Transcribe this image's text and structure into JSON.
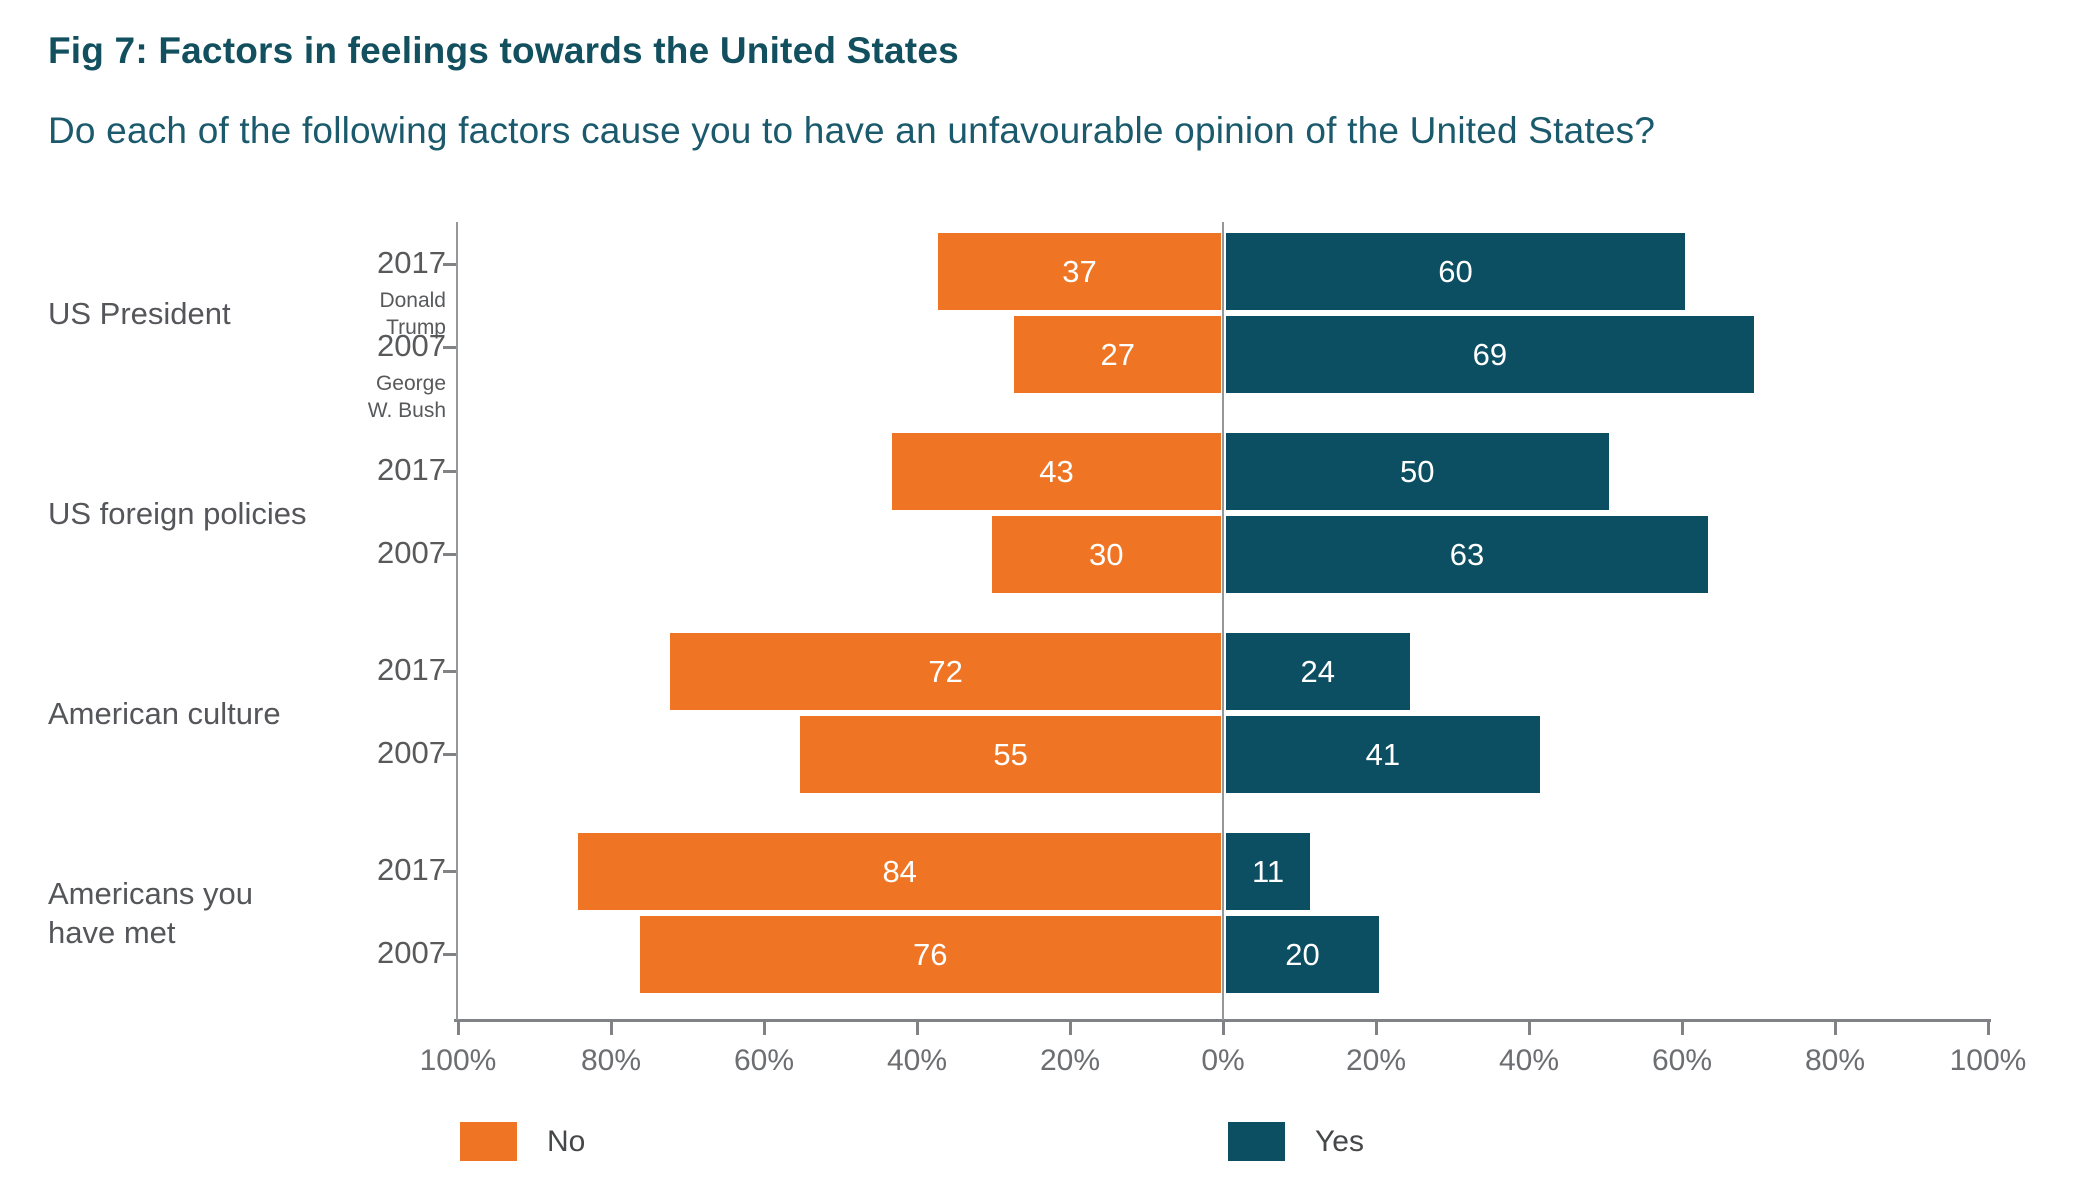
{
  "chart_data": {
    "type": "bar",
    "variant": "diverging-horizontal",
    "title": "Fig 7: Factors in feelings towards the United States",
    "subtitle": "Do each of the following factors cause you to have an unfavourable opinion of the United States?",
    "xlim": [
      -100,
      100
    ],
    "x_tick_values": [
      -100,
      -80,
      -60,
      -40,
      -20,
      0,
      20,
      40,
      60,
      80,
      100
    ],
    "x_tick_labels": [
      "100%",
      "80%",
      "60%",
      "40%",
      "20%",
      "0%",
      "20%",
      "40%",
      "60%",
      "80%",
      "100%"
    ],
    "grid": false,
    "legend_position": "bottom",
    "legend": [
      {
        "label": "No",
        "color": "#ef7524",
        "side": "left"
      },
      {
        "label": "Yes",
        "color": "#0c4f63",
        "side": "right"
      }
    ],
    "colors": {
      "no": "#ef7524",
      "yes": "#0c4f63"
    },
    "groups": [
      {
        "category": "US President",
        "category_lines": [
          "US President"
        ],
        "rows": [
          {
            "year": "2017",
            "sublabel": "Donald Trump",
            "sublabel_lines": [
              "Donald",
              "Trump"
            ],
            "no": 37,
            "yes": 60
          },
          {
            "year": "2007",
            "sublabel": "George W. Bush",
            "sublabel_lines": [
              "George",
              "W. Bush"
            ],
            "no": 27,
            "yes": 69
          }
        ]
      },
      {
        "category": "US foreign policies",
        "category_lines": [
          "US foreign policies"
        ],
        "rows": [
          {
            "year": "2017",
            "sublabel": "",
            "sublabel_lines": [],
            "no": 43,
            "yes": 50
          },
          {
            "year": "2007",
            "sublabel": "",
            "sublabel_lines": [],
            "no": 30,
            "yes": 63
          }
        ]
      },
      {
        "category": "American culture",
        "category_lines": [
          "American culture"
        ],
        "rows": [
          {
            "year": "2017",
            "sublabel": "",
            "sublabel_lines": [],
            "no": 72,
            "yes": 24
          },
          {
            "year": "2007",
            "sublabel": "",
            "sublabel_lines": [],
            "no": 55,
            "yes": 41
          }
        ]
      },
      {
        "category": "Americans you have met",
        "category_lines": [
          "Americans you",
          "have met"
        ],
        "rows": [
          {
            "year": "2017",
            "sublabel": "",
            "sublabel_lines": [],
            "no": 84,
            "yes": 11
          },
          {
            "year": "2007",
            "sublabel": "",
            "sublabel_lines": [],
            "no": 76,
            "yes": 20
          }
        ]
      }
    ]
  }
}
